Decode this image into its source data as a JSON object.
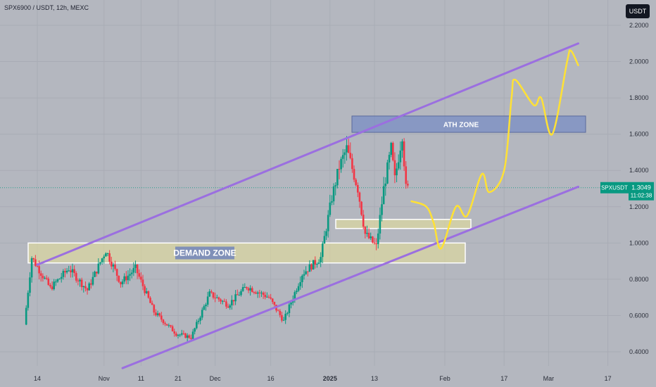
{
  "header": {
    "symbol_title": "SPX6900 / USDT, 12h, MEXC",
    "currency_button": "USDT"
  },
  "colors": {
    "background": "#b4b7bf",
    "bull_candle": "#089981",
    "bear_candle": "#f23645",
    "channel_line": "#9b6fe0",
    "projection_line": "#ffe135",
    "demand_zone_fill": "#dcd7a0",
    "ath_zone_fill": "#7a8ec4",
    "price_tag": "#089981"
  },
  "price_tag": {
    "symbol": "SPXUSDT",
    "price": "1.3049",
    "countdown": "11:02:38"
  },
  "annotations": {
    "demand_zone_label": "DEMAND ZONE",
    "ath_zone_label": "ATH ZONE"
  },
  "chart_data": {
    "type": "candlestick",
    "title": "SPX6900 / USDT, 12h, MEXC",
    "y_axis": {
      "min": 0.33,
      "max": 2.26,
      "ticks": [
        "2.2000",
        "2.0000",
        "1.8000",
        "1.6000",
        "1.4000",
        "1.2000",
        "1.0000",
        "0.8000",
        "0.6000",
        "0.4000"
      ]
    },
    "x_axis": {
      "ticks": [
        "14",
        "Nov",
        "11",
        "21",
        "Dec",
        "16",
        "2025",
        "13",
        "Feb",
        "17",
        "Mar",
        "17"
      ]
    },
    "last_price": 1.3049,
    "price_anchors": [
      {
        "date": "Oct 11",
        "price": 0.55
      },
      {
        "date": "Oct 13",
        "price": 0.92
      },
      {
        "date": "Oct 18",
        "price": 0.75
      },
      {
        "date": "Oct 23",
        "price": 0.86
      },
      {
        "date": "Oct 28",
        "price": 0.74
      },
      {
        "date": "Nov 2",
        "price": 0.96
      },
      {
        "date": "Nov 6",
        "price": 0.78
      },
      {
        "date": "Nov 10",
        "price": 0.86
      },
      {
        "date": "Nov 15",
        "price": 0.62
      },
      {
        "date": "Nov 21",
        "price": 0.5
      },
      {
        "date": "Nov 25",
        "price": 0.48
      },
      {
        "date": "Nov 30",
        "price": 0.72
      },
      {
        "date": "Dec 5",
        "price": 0.66
      },
      {
        "date": "Dec 10",
        "price": 0.76
      },
      {
        "date": "Dec 16",
        "price": 0.7
      },
      {
        "date": "Dec 20",
        "price": 0.57
      },
      {
        "date": "Dec 25",
        "price": 0.83
      },
      {
        "date": "Dec 30",
        "price": 0.92
      },
      {
        "date": "Jan 2",
        "price": 1.25
      },
      {
        "date": "Jan 4",
        "price": 1.42
      },
      {
        "date": "Jan 6",
        "price": 1.52
      },
      {
        "date": "Jan 9",
        "price": 1.3
      },
      {
        "date": "Jan 11",
        "price": 1.05
      },
      {
        "date": "Jan 14",
        "price": 0.98
      },
      {
        "date": "Jan 16",
        "price": 1.3
      },
      {
        "date": "Jan 18",
        "price": 1.52
      },
      {
        "date": "Jan 19",
        "price": 1.35
      },
      {
        "date": "Jan 21",
        "price": 1.6
      },
      {
        "date": "Jan 22",
        "price": 1.3
      }
    ],
    "channel": {
      "upper": [
        {
          "date": "Oct 14",
          "price": 0.88
        },
        {
          "date": "Mar 9",
          "price": 2.1
        }
      ],
      "lower": [
        {
          "date": "Nov 6",
          "price": 0.31
        },
        {
          "date": "Mar 9",
          "price": 1.31
        }
      ]
    },
    "zones": [
      {
        "label": "DEMAND ZONE",
        "from": 0.89,
        "to": 1.0
      },
      {
        "label": "ATH ZONE",
        "from": 1.61,
        "to": 1.7
      },
      {
        "label": "",
        "from": 1.08,
        "to": 1.13
      }
    ],
    "projection": [
      {
        "date": "Jan 23",
        "price": 1.23
      },
      {
        "date": "Jan 27",
        "price": 1.2
      },
      {
        "date": "Jan 29",
        "price": 1.11
      },
      {
        "date": "Jan 31",
        "price": 0.97
      },
      {
        "date": "Feb 4",
        "price": 1.2
      },
      {
        "date": "Feb 7",
        "price": 1.15
      },
      {
        "date": "Feb 11",
        "price": 1.38
      },
      {
        "date": "Feb 13",
        "price": 1.28
      },
      {
        "date": "Feb 17",
        "price": 1.4
      },
      {
        "date": "Feb 19",
        "price": 1.8
      },
      {
        "date": "Feb 20",
        "price": 1.9
      },
      {
        "date": "Feb 25",
        "price": 1.76
      },
      {
        "date": "Feb 27",
        "price": 1.8
      },
      {
        "date": "Mar 2",
        "price": 1.6
      },
      {
        "date": "Mar 6",
        "price": 2.0
      },
      {
        "date": "Mar 7",
        "price": 2.06
      },
      {
        "date": "Mar 9",
        "price": 1.98
      }
    ]
  }
}
